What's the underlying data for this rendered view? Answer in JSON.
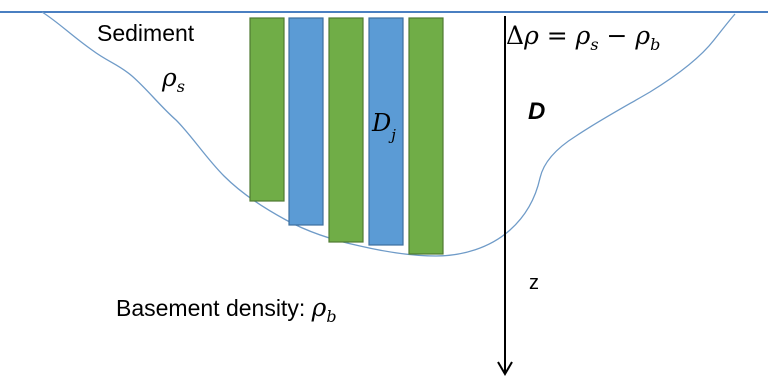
{
  "labels": {
    "sediment": "Sediment",
    "sediment_density_symbol": "ρ",
    "sediment_density_subscript": "s",
    "basement_prefix": "Basement density: ",
    "basement_density_symbol": "ρ",
    "basement_density_subscript": "b",
    "contrast_delta": "Δ",
    "contrast_rho1": "ρ",
    "contrast_equals": " = ",
    "contrast_rho2": "ρ",
    "contrast_sub_s": "s",
    "contrast_minus": " − ",
    "contrast_rho3": "ρ",
    "contrast_sub_b": "b",
    "depth_label": "D",
    "prism_depth_symbol": "D",
    "prism_depth_subscript": "j",
    "z_axis_label": "z"
  },
  "colors": {
    "basin_outline": "#6f9bc8",
    "surface_line": "#4a7fc1",
    "prism_green": "#70ad47",
    "prism_green_edge": "#4f7a32",
    "prism_blue": "#5b9bd5",
    "prism_blue_edge": "#3d6f9e",
    "axis": "#000000"
  },
  "prisms": [
    {
      "color": "green",
      "relative_depth": 0.76
    },
    {
      "color": "blue",
      "relative_depth": 0.86
    },
    {
      "color": "green",
      "relative_depth": 0.93
    },
    {
      "color": "blue",
      "relative_depth": 0.94
    },
    {
      "color": "green",
      "relative_depth": 0.98
    }
  ]
}
